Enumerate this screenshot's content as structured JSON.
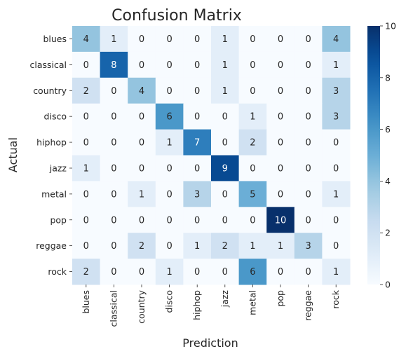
{
  "chart_data": {
    "type": "heatmap",
    "title": "Confusion Matrix",
    "xlabel": "Prediction",
    "ylabel": "Actual",
    "x_categories": [
      "blues",
      "classical",
      "country",
      "disco",
      "hiphop",
      "jazz",
      "metal",
      "pop",
      "reggae",
      "rock"
    ],
    "y_categories": [
      "blues",
      "classical",
      "country",
      "disco",
      "hiphop",
      "jazz",
      "metal",
      "pop",
      "reggae",
      "rock"
    ],
    "values": [
      [
        4,
        1,
        0,
        0,
        0,
        1,
        0,
        0,
        0,
        4
      ],
      [
        0,
        8,
        0,
        0,
        0,
        1,
        0,
        0,
        0,
        1
      ],
      [
        2,
        0,
        4,
        0,
        0,
        1,
        0,
        0,
        0,
        3
      ],
      [
        0,
        0,
        0,
        6,
        0,
        0,
        1,
        0,
        0,
        3
      ],
      [
        0,
        0,
        0,
        1,
        7,
        0,
        2,
        0,
        0,
        0
      ],
      [
        1,
        0,
        0,
        0,
        0,
        9,
        0,
        0,
        0,
        0
      ],
      [
        0,
        0,
        1,
        0,
        3,
        0,
        5,
        0,
        0,
        1
      ],
      [
        0,
        0,
        0,
        0,
        0,
        0,
        0,
        10,
        0,
        0
      ],
      [
        0,
        0,
        2,
        0,
        1,
        2,
        1,
        1,
        3,
        0
      ],
      [
        2,
        0,
        0,
        1,
        0,
        0,
        6,
        0,
        0,
        1
      ]
    ],
    "colorbar": {
      "range": [
        0,
        10
      ],
      "ticks": [
        "0",
        "2",
        "4",
        "6",
        "8",
        "10"
      ],
      "colormap": "Blues"
    }
  }
}
